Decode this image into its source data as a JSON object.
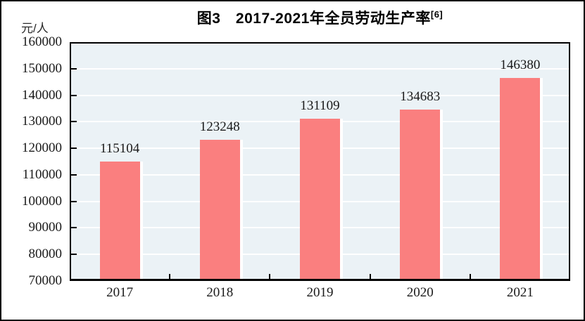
{
  "title": {
    "main": "图3　2017-2021年全员劳动生产率",
    "superscript": "[6]"
  },
  "y_unit_label": "元/人",
  "chart_data": {
    "type": "bar",
    "title": "图3 2017-2021年全员劳动生产率[6]",
    "categories": [
      "2017",
      "2018",
      "2019",
      "2020",
      "2021"
    ],
    "values": [
      115104,
      123248,
      131109,
      134683,
      146380
    ],
    "data_labels": [
      "115104",
      "123248",
      "131109",
      "134683",
      "146380"
    ],
    "xlabel": "",
    "ylabel": "元/人",
    "ylim": [
      70000,
      160000
    ],
    "ytick_step": 10000,
    "ytick_labels": [
      "70000",
      "80000",
      "90000",
      "100000",
      "110000",
      "120000",
      "130000",
      "140000",
      "150000",
      "160000"
    ],
    "grid": true,
    "legend": "none",
    "colors": {
      "bar": "#FA7F7F",
      "bar_right_edge": "#FFFFFF",
      "plot_background": "#EBF2F6",
      "gridline": "#FFFFFF",
      "axis": "#000000",
      "text": "#1A1A1A",
      "frame_border": "#000000"
    }
  }
}
